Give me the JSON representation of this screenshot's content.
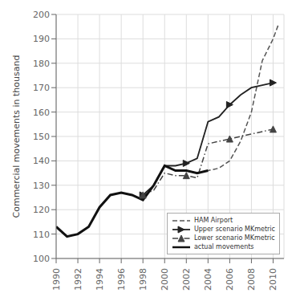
{
  "chart_data": {
    "type": "line",
    "ylabel": "Commercial movements in thousand",
    "xlim": [
      1990,
      2011
    ],
    "ylim": [
      100,
      200
    ],
    "xticks": [
      1990,
      1992,
      1994,
      1996,
      1998,
      2000,
      2002,
      2004,
      2006,
      2008,
      2010
    ],
    "yticks": [
      100,
      110,
      120,
      130,
      140,
      150,
      160,
      170,
      180,
      190,
      200
    ],
    "grid": true,
    "legend": "lower right",
    "series": [
      {
        "name": "HAM Airport",
        "color": "#555555",
        "line_style": "dashed",
        "x": [
          1990,
          1991,
          1992,
          1993,
          1994,
          1995,
          1996,
          1997,
          1998,
          1999,
          2000,
          2001,
          2002,
          2003,
          2004,
          2005,
          2006,
          2007,
          2008,
          2009,
          2010,
          2010.5
        ],
        "values": [
          113,
          109,
          110,
          113,
          121,
          126,
          127,
          126,
          124,
          130,
          138,
          136,
          136,
          135,
          136,
          137,
          140,
          148,
          160,
          181,
          190,
          196
        ]
      },
      {
        "name": "Upper scenario MKmetric",
        "color": "#222222",
        "line_style": "solid",
        "marker": "triangle-right",
        "x": [
          1998,
          1999,
          2000,
          2001,
          2002,
          2003,
          2004,
          2005,
          2006,
          2007,
          2008,
          2009,
          2010
        ],
        "values": [
          126,
          130,
          138,
          138,
          139,
          141,
          156,
          158,
          163,
          167,
          170,
          171,
          172
        ]
      },
      {
        "name": "Lower scenario MKmetric",
        "color": "#444444",
        "line_style": "dashdot",
        "marker": "triangle",
        "x": [
          1998,
          1999,
          2000,
          2001,
          2002,
          2003,
          2004,
          2005,
          2006,
          2007,
          2008,
          2009,
          2010
        ],
        "values": [
          126,
          128,
          135,
          134,
          134,
          133,
          147,
          148,
          149,
          150,
          151,
          152,
          153
        ]
      },
      {
        "name": "actual movements",
        "color": "#111111",
        "line_style": "solid",
        "x": [
          1990,
          1991,
          1992,
          1993,
          1994,
          1995,
          1996,
          1997,
          1998,
          1999,
          2000,
          2001,
          2002,
          2003,
          2004
        ],
        "values": [
          113,
          109,
          110,
          113,
          121,
          126,
          127,
          126,
          124,
          130,
          138,
          136,
          136,
          135,
          136
        ]
      }
    ]
  }
}
